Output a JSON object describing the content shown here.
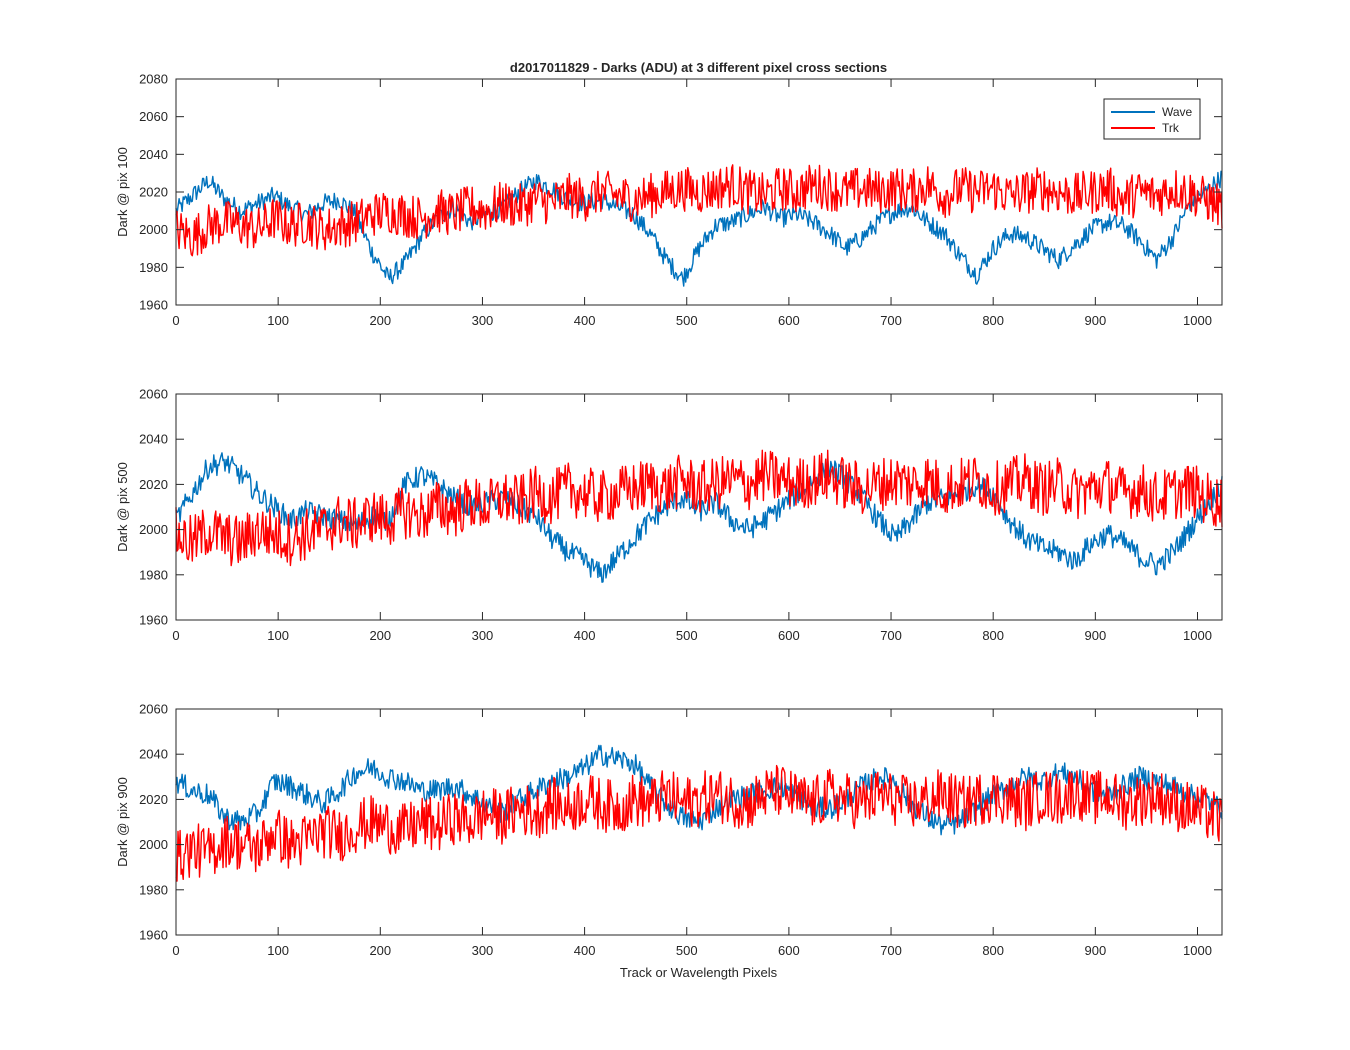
{
  "figure_title": "d2017011829 - Darks (ADU) at 3 different pixel cross sections",
  "xlabel": "Track or Wavelength Pixels",
  "legend": [
    "Wave",
    "Trk"
  ],
  "colors": {
    "Wave": "#0072BD",
    "Trk": "#FF0000",
    "axis": "#262626"
  },
  "chart_data": [
    {
      "type": "line",
      "title": "d2017011829 - Darks (ADU) at 3 different pixel cross sections",
      "xlabel": "",
      "ylabel": "Dark @ pix 100",
      "xlim": [
        0,
        1024
      ],
      "ylim": [
        1960,
        2080
      ],
      "xticks": [
        0,
        100,
        200,
        300,
        400,
        500,
        600,
        700,
        800,
        900,
        1000
      ],
      "yticks": [
        1960,
        1980,
        2000,
        2020,
        2040,
        2060,
        2080
      ],
      "legend_position": "top-right",
      "grid": false,
      "series": [
        {
          "name": "Wave",
          "x": [
            0,
            16,
            32,
            48,
            64,
            80,
            96,
            112,
            128,
            144,
            160,
            176,
            192,
            208,
            224,
            240,
            256,
            272,
            288,
            304,
            320,
            336,
            352,
            368,
            384,
            400,
            416,
            432,
            448,
            464,
            480,
            496,
            512,
            528,
            544,
            560,
            576,
            592,
            608,
            624,
            640,
            656,
            672,
            688,
            704,
            720,
            736,
            752,
            768,
            784,
            800,
            816,
            832,
            848,
            864,
            880,
            896,
            912,
            928,
            944,
            960,
            976,
            992,
            1008,
            1024
          ],
          "values": [
            2010,
            2018,
            2026,
            2016,
            2010,
            2014,
            2018,
            2012,
            2008,
            2014,
            2016,
            2008,
            1988,
            1974,
            1982,
            1996,
            2006,
            2012,
            2004,
            2008,
            2012,
            2020,
            2026,
            2022,
            2016,
            2014,
            2016,
            2012,
            2008,
            1998,
            1984,
            1974,
            1990,
            2002,
            2004,
            2008,
            2012,
            2006,
            2008,
            2004,
            1998,
            1990,
            1996,
            2004,
            2010,
            2012,
            2004,
            1998,
            1986,
            1976,
            1990,
            1998,
            1996,
            1990,
            1984,
            1992,
            2000,
            2004,
            2002,
            1994,
            1984,
            1996,
            2014,
            2020,
            2028
          ]
        },
        {
          "name": "Trk",
          "x": [
            0,
            16,
            32,
            48,
            64,
            80,
            96,
            112,
            128,
            144,
            160,
            176,
            192,
            208,
            224,
            240,
            256,
            272,
            288,
            304,
            320,
            336,
            352,
            368,
            384,
            400,
            416,
            432,
            448,
            464,
            480,
            496,
            512,
            528,
            544,
            560,
            576,
            592,
            608,
            624,
            640,
            656,
            672,
            688,
            704,
            720,
            736,
            752,
            768,
            784,
            800,
            816,
            832,
            848,
            864,
            880,
            896,
            912,
            928,
            944,
            960,
            976,
            992,
            1008,
            1024
          ],
          "values": [
            2000,
            1996,
            2002,
            2004,
            2002,
            2000,
            2006,
            2002,
            2004,
            2000,
            2002,
            2004,
            2008,
            2010,
            2008,
            2006,
            2010,
            2008,
            2012,
            2010,
            2014,
            2012,
            2016,
            2014,
            2018,
            2016,
            2020,
            2018,
            2016,
            2018,
            2020,
            2022,
            2020,
            2022,
            2024,
            2020,
            2018,
            2022,
            2020,
            2024,
            2022,
            2020,
            2022,
            2020,
            2022,
            2020,
            2024,
            2018,
            2022,
            2020,
            2022,
            2018,
            2020,
            2022,
            2020,
            2018,
            2020,
            2022,
            2016,
            2020,
            2018,
            2022,
            2020,
            2016,
            2012
          ]
        }
      ]
    },
    {
      "type": "line",
      "title": "",
      "xlabel": "",
      "ylabel": "Dark @ pix 500",
      "xlim": [
        0,
        1024
      ],
      "ylim": [
        1960,
        2060
      ],
      "xticks": [
        0,
        100,
        200,
        300,
        400,
        500,
        600,
        700,
        800,
        900,
        1000
      ],
      "yticks": [
        1960,
        1980,
        2000,
        2020,
        2040,
        2060
      ],
      "grid": false,
      "series": [
        {
          "name": "Wave",
          "x": [
            0,
            16,
            32,
            48,
            64,
            80,
            96,
            112,
            128,
            144,
            160,
            176,
            192,
            208,
            224,
            240,
            256,
            272,
            288,
            304,
            320,
            336,
            352,
            368,
            384,
            400,
            416,
            432,
            448,
            464,
            480,
            496,
            512,
            528,
            544,
            560,
            576,
            592,
            608,
            624,
            640,
            656,
            672,
            688,
            704,
            720,
            736,
            752,
            768,
            784,
            800,
            816,
            832,
            848,
            864,
            880,
            896,
            912,
            928,
            944,
            960,
            976,
            992,
            1008,
            1024
          ],
          "values": [
            2004,
            2016,
            2028,
            2030,
            2024,
            2016,
            2010,
            2004,
            2008,
            2006,
            2004,
            2002,
            2006,
            2004,
            2020,
            2024,
            2020,
            2014,
            2010,
            2012,
            2014,
            2010,
            2006,
            1996,
            1990,
            1986,
            1980,
            1988,
            1996,
            2004,
            2010,
            2014,
            2008,
            2012,
            2004,
            2000,
            2004,
            2010,
            2016,
            2022,
            2028,
            2022,
            2014,
            2004,
            1996,
            2004,
            2012,
            2014,
            2016,
            2020,
            2016,
            2004,
            1996,
            1992,
            1990,
            1986,
            1994,
            1998,
            1994,
            1988,
            1984,
            1990,
            2000,
            2010,
            2020
          ]
        },
        {
          "name": "Trk",
          "x": [
            0,
            16,
            32,
            48,
            64,
            80,
            96,
            112,
            128,
            144,
            160,
            176,
            192,
            208,
            224,
            240,
            256,
            272,
            288,
            304,
            320,
            336,
            352,
            368,
            384,
            400,
            416,
            432,
            448,
            464,
            480,
            496,
            512,
            528,
            544,
            560,
            576,
            592,
            608,
            624,
            640,
            656,
            672,
            688,
            704,
            720,
            736,
            752,
            768,
            784,
            800,
            816,
            832,
            848,
            864,
            880,
            896,
            912,
            928,
            944,
            960,
            976,
            992,
            1008,
            1024
          ],
          "values": [
            1998,
            1994,
            2000,
            1996,
            1994,
            2000,
            1998,
            1996,
            1998,
            2000,
            2004,
            2002,
            2006,
            2004,
            2008,
            2006,
            2010,
            2008,
            2012,
            2010,
            2014,
            2012,
            2016,
            2014,
            2018,
            2016,
            2014,
            2016,
            2018,
            2020,
            2018,
            2022,
            2018,
            2020,
            2022,
            2020,
            2024,
            2022,
            2020,
            2022,
            2024,
            2020,
            2018,
            2020,
            2022,
            2020,
            2022,
            2018,
            2020,
            2022,
            2018,
            2020,
            2022,
            2018,
            2020,
            2016,
            2018,
            2020,
            2016,
            2018,
            2014,
            2016,
            2018,
            2014,
            2012
          ]
        }
      ]
    },
    {
      "type": "line",
      "title": "",
      "xlabel": "Track or Wavelength Pixels",
      "ylabel": "Dark @ pix 900",
      "xlim": [
        0,
        1024
      ],
      "ylim": [
        1960,
        2060
      ],
      "xticks": [
        0,
        100,
        200,
        300,
        400,
        500,
        600,
        700,
        800,
        900,
        1000
      ],
      "yticks": [
        1960,
        1980,
        2000,
        2020,
        2040,
        2060
      ],
      "grid": false,
      "series": [
        {
          "name": "Wave",
          "x": [
            0,
            16,
            32,
            48,
            64,
            80,
            96,
            112,
            128,
            144,
            160,
            176,
            192,
            208,
            224,
            240,
            256,
            272,
            288,
            304,
            320,
            336,
            352,
            368,
            384,
            400,
            416,
            432,
            448,
            464,
            480,
            496,
            512,
            528,
            544,
            560,
            576,
            592,
            608,
            624,
            640,
            656,
            672,
            688,
            704,
            720,
            736,
            752,
            768,
            784,
            800,
            816,
            832,
            848,
            864,
            880,
            896,
            912,
            928,
            944,
            960,
            976,
            992,
            1008,
            1024
          ],
          "values": [
            2028,
            2024,
            2022,
            2012,
            2010,
            2014,
            2028,
            2026,
            2022,
            2018,
            2024,
            2032,
            2034,
            2030,
            2028,
            2024,
            2024,
            2026,
            2022,
            2018,
            2014,
            2020,
            2024,
            2028,
            2030,
            2034,
            2040,
            2038,
            2036,
            2026,
            2018,
            2012,
            2010,
            2016,
            2020,
            2022,
            2024,
            2026,
            2022,
            2016,
            2016,
            2020,
            2026,
            2030,
            2028,
            2018,
            2012,
            2008,
            2010,
            2016,
            2022,
            2026,
            2030,
            2028,
            2032,
            2030,
            2024,
            2022,
            2026,
            2030,
            2028,
            2026,
            2022,
            2020,
            2016
          ]
        },
        {
          "name": "Trk",
          "x": [
            0,
            16,
            32,
            48,
            64,
            80,
            96,
            112,
            128,
            144,
            160,
            176,
            192,
            208,
            224,
            240,
            256,
            272,
            288,
            304,
            320,
            336,
            352,
            368,
            384,
            400,
            416,
            432,
            448,
            464,
            480,
            496,
            512,
            528,
            544,
            560,
            576,
            592,
            608,
            624,
            640,
            656,
            672,
            688,
            704,
            720,
            736,
            752,
            768,
            784,
            800,
            816,
            832,
            848,
            864,
            880,
            896,
            912,
            928,
            944,
            960,
            976,
            992,
            1008,
            1024
          ],
          "values": [
            1994,
            1998,
            1996,
            2002,
            2000,
            1998,
            2006,
            2000,
            2002,
            2006,
            2004,
            2008,
            2010,
            2008,
            2006,
            2010,
            2008,
            2012,
            2010,
            2014,
            2012,
            2016,
            2014,
            2018,
            2016,
            2020,
            2018,
            2016,
            2020,
            2018,
            2022,
            2018,
            2020,
            2022,
            2020,
            2018,
            2022,
            2024,
            2020,
            2018,
            2022,
            2020,
            2018,
            2022,
            2020,
            2018,
            2020,
            2022,
            2018,
            2020,
            2022,
            2020,
            2018,
            2022,
            2020,
            2024,
            2020,
            2022,
            2018,
            2020,
            2022,
            2018,
            2016,
            2014,
            2010
          ]
        }
      ]
    }
  ]
}
